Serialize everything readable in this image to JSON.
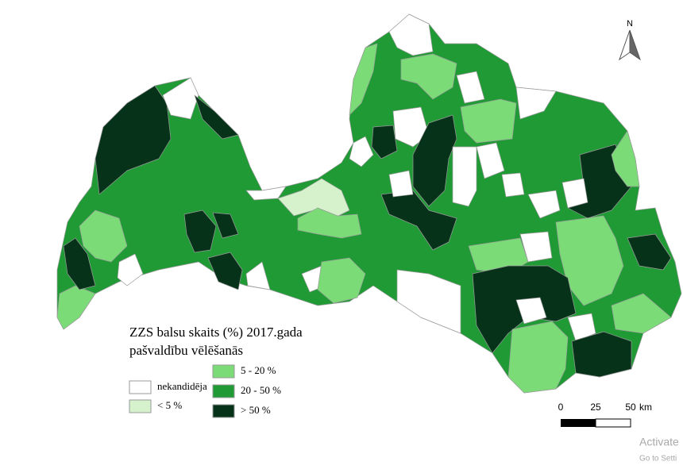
{
  "map": {
    "title": [
      "ZZS balsu skaits (%) 2017.gada",
      "pašvaldību vēlēšanās"
    ],
    "legend": [
      {
        "label": "nekandidēja",
        "color": "#ffffff"
      },
      {
        "label": "< 5 %",
        "color": "#d5f2cc"
      },
      {
        "label": "5 - 20 %",
        "color": "#7bdb77"
      },
      {
        "label": "20 - 50 %",
        "color": "#1f9a35"
      },
      {
        "label": "> 50 %",
        "color": "#07321a"
      }
    ],
    "scale": {
      "ticks": [
        0,
        25,
        50
      ],
      "unit": "km"
    },
    "north": "N",
    "watermark": [
      "Activate",
      "Go to Setti"
    ]
  }
}
